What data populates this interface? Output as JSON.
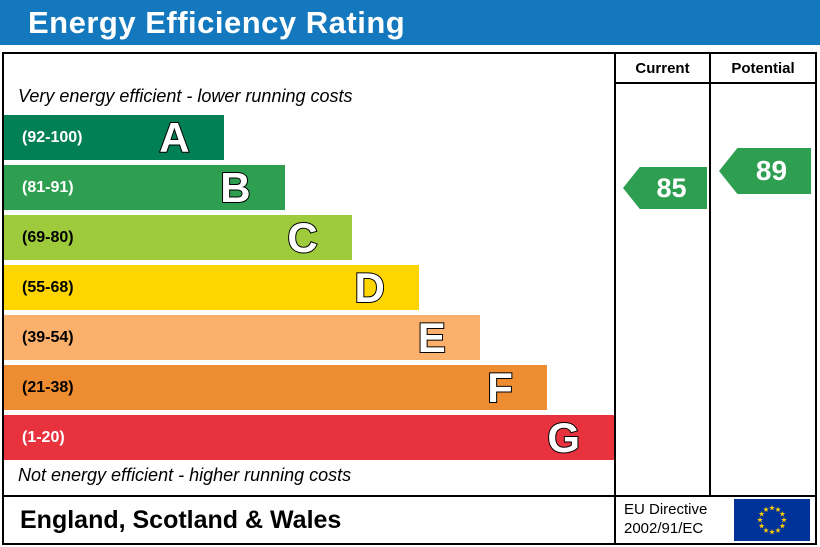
{
  "title": "Energy Efficiency Rating",
  "columns": {
    "current": "Current",
    "potential": "Potential"
  },
  "notes": {
    "top": "Very energy efficient - lower running costs",
    "bottom": "Not energy efficient - higher running costs"
  },
  "footer": {
    "region": "England, Scotland & Wales",
    "directive_line1": "EU Directive",
    "directive_line2": "2002/91/EC"
  },
  "ratings": {
    "current": {
      "value": "85",
      "arrow_color": "#2e9f51"
    },
    "potential": {
      "value": "89",
      "arrow_color": "#2e9f51"
    }
  },
  "colors": {
    "header_bg": "#1478be",
    "header_text": "#ffffff",
    "border": "#000000",
    "flag_bg": "#003399",
    "flag_stars": "#ffcc00"
  },
  "chart_data": {
    "type": "bar",
    "orientation": "horizontal",
    "title": "Energy Efficiency Rating",
    "bands": [
      {
        "letter": "A",
        "range": "(92-100)",
        "color": "#008054",
        "label_color": "#ffffff",
        "width_pct": 36
      },
      {
        "letter": "B",
        "range": "(81-91)",
        "color": "#2e9f51",
        "label_color": "#ffffff",
        "width_pct": 46
      },
      {
        "letter": "C",
        "range": "(69-80)",
        "color": "#9dcb3c",
        "label_color": "#000000",
        "width_pct": 57
      },
      {
        "letter": "D",
        "range": "(55-68)",
        "color": "#ffd500",
        "label_color": "#000000",
        "width_pct": 68
      },
      {
        "letter": "E",
        "range": "(39-54)",
        "color": "#fbb16b",
        "label_color": "#000000",
        "width_pct": 78
      },
      {
        "letter": "F",
        "range": "(21-38)",
        "color": "#ee8c31",
        "label_color": "#000000",
        "width_pct": 89
      },
      {
        "letter": "G",
        "range": "(1-20)",
        "color": "#e8323e",
        "label_color": "#ffffff",
        "width_pct": 100
      }
    ],
    "current": {
      "value": 85,
      "band": "B"
    },
    "potential": {
      "value": 89,
      "band": "B"
    }
  }
}
